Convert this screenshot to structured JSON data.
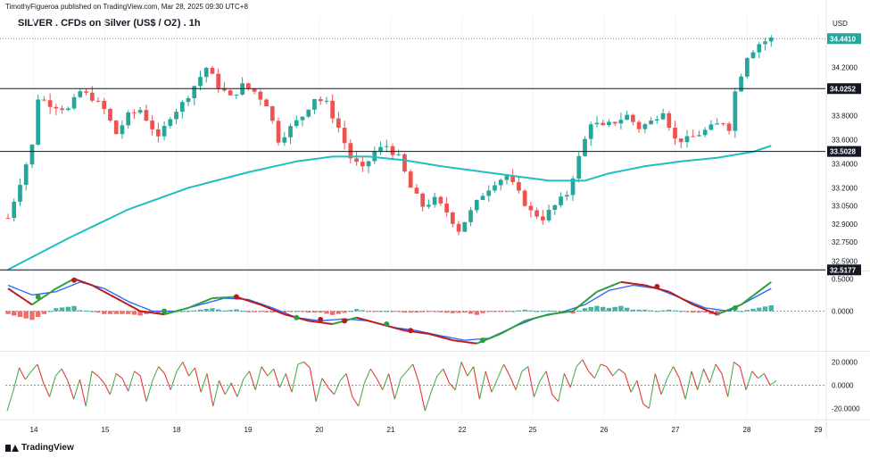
{
  "header": {
    "publisher": "TimothyFigueroa published on TradingView.com, Mar 28, 2025 09:30 UTC+8",
    "title": "SILVER . CFDs on Silver (US$ / OZ) . 1h",
    "currency": "USD"
  },
  "footer": {
    "brand": "TradingView"
  },
  "colors": {
    "up": "#26a69a",
    "down": "#ef5350",
    "ma": "#1fbfbf",
    "level_line": "#131722",
    "osc_fast": "#2e9e3c",
    "osc_fast_down": "#b71c1c",
    "osc_slow": "#2962ff",
    "hist_up": "#26a69a",
    "hist_down": "#ef5350",
    "pane3_up": "#4caf50",
    "pane3_down": "#e53935"
  },
  "chart_data": {
    "type": "candlestick",
    "x_tick_labels": [
      "14",
      "15",
      "18",
      "19",
      "20",
      "21",
      "22",
      "25",
      "26",
      "27",
      "28",
      "29"
    ],
    "price_axis": {
      "ticks": [
        "34.2000",
        "33.8000",
        "33.6000",
        "33.4000",
        "33.2000",
        "33.0500",
        "32.9000",
        "32.7500",
        "32.5900"
      ],
      "range": [
        32.52,
        34.48
      ]
    },
    "horizontal_levels": [
      {
        "label": "34.0252",
        "value": 34.0252
      },
      {
        "label": "33.5028",
        "value": 33.5028
      },
      {
        "label": "32.5177",
        "value": 32.5177
      }
    ],
    "last_price": {
      "label": "34.4410",
      "value": 34.441
    },
    "price_path": [
      [
        0,
        32.95
      ],
      [
        2,
        33.25
      ],
      [
        4,
        33.55
      ],
      [
        5,
        33.95
      ],
      [
        7,
        33.9
      ],
      [
        10,
        33.85
      ],
      [
        12,
        34.0
      ],
      [
        14,
        33.95
      ],
      [
        16,
        33.85
      ],
      [
        18,
        33.65
      ],
      [
        20,
        33.8
      ],
      [
        22,
        33.85
      ],
      [
        24,
        33.7
      ],
      [
        25,
        33.6
      ],
      [
        27,
        33.8
      ],
      [
        29,
        33.9
      ],
      [
        31,
        34.05
      ],
      [
        33,
        34.2
      ],
      [
        35,
        34.05
      ],
      [
        37,
        33.95
      ],
      [
        39,
        34.05
      ],
      [
        41,
        34.0
      ],
      [
        43,
        33.9
      ],
      [
        45,
        33.6
      ],
      [
        47,
        33.7
      ],
      [
        49,
        33.8
      ],
      [
        51,
        33.95
      ],
      [
        53,
        33.9
      ],
      [
        55,
        33.7
      ],
      [
        57,
        33.45
      ],
      [
        59,
        33.35
      ],
      [
        61,
        33.5
      ],
      [
        63,
        33.55
      ],
      [
        65,
        33.45
      ],
      [
        67,
        33.2
      ],
      [
        69,
        33.05
      ],
      [
        71,
        33.1
      ],
      [
        73,
        33.0
      ],
      [
        75,
        32.85
      ],
      [
        77,
        33.0
      ],
      [
        79,
        33.15
      ],
      [
        81,
        33.25
      ],
      [
        83,
        33.3
      ],
      [
        85,
        33.15
      ],
      [
        87,
        33.0
      ],
      [
        89,
        32.95
      ],
      [
        91,
        33.05
      ],
      [
        93,
        33.15
      ],
      [
        95,
        33.45
      ],
      [
        97,
        33.75
      ],
      [
        99,
        33.7
      ],
      [
        101,
        33.75
      ],
      [
        103,
        33.8
      ],
      [
        105,
        33.7
      ],
      [
        107,
        33.75
      ],
      [
        109,
        33.85
      ],
      [
        111,
        33.6
      ],
      [
        113,
        33.6
      ],
      [
        115,
        33.65
      ],
      [
        117,
        33.7
      ],
      [
        119,
        33.75
      ],
      [
        120,
        33.7
      ],
      [
        121,
        34.0
      ],
      [
        123,
        34.3
      ],
      [
        125,
        34.4
      ],
      [
        127,
        34.44
      ]
    ],
    "ma_value_path": [
      [
        0,
        32.52
      ],
      [
        10,
        32.78
      ],
      [
        20,
        33.02
      ],
      [
        30,
        33.2
      ],
      [
        40,
        33.33
      ],
      [
        48,
        33.42
      ],
      [
        54,
        33.46
      ],
      [
        60,
        33.46
      ],
      [
        66,
        33.43
      ],
      [
        72,
        33.38
      ],
      [
        78,
        33.34
      ],
      [
        84,
        33.3
      ],
      [
        90,
        33.26
      ],
      [
        96,
        33.26
      ],
      [
        100,
        33.32
      ],
      [
        106,
        33.38
      ],
      [
        112,
        33.42
      ],
      [
        118,
        33.45
      ],
      [
        124,
        33.5
      ],
      [
        127,
        33.55
      ]
    ],
    "oscillator_pane": {
      "ticks": [
        "0.5000",
        "0.0000"
      ],
      "range": [
        -0.6,
        0.6
      ],
      "fast_path": [
        [
          0,
          0.35
        ],
        [
          4,
          0.1
        ],
        [
          8,
          0.35
        ],
        [
          11,
          0.5
        ],
        [
          14,
          0.4
        ],
        [
          18,
          0.2
        ],
        [
          22,
          0.0
        ],
        [
          26,
          -0.05
        ],
        [
          30,
          0.05
        ],
        [
          34,
          0.2
        ],
        [
          38,
          0.22
        ],
        [
          42,
          0.1
        ],
        [
          46,
          -0.05
        ],
        [
          50,
          -0.15
        ],
        [
          54,
          -0.2
        ],
        [
          58,
          -0.1
        ],
        [
          62,
          -0.2
        ],
        [
          66,
          -0.3
        ],
        [
          70,
          -0.35
        ],
        [
          74,
          -0.45
        ],
        [
          78,
          -0.5
        ],
        [
          82,
          -0.35
        ],
        [
          86,
          -0.15
        ],
        [
          90,
          -0.05
        ],
        [
          94,
          0.0
        ],
        [
          98,
          0.3
        ],
        [
          102,
          0.45
        ],
        [
          106,
          0.4
        ],
        [
          110,
          0.3
        ],
        [
          114,
          0.1
        ],
        [
          118,
          -0.05
        ],
        [
          122,
          0.1
        ],
        [
          127,
          0.45
        ]
      ],
      "slow_path": [
        [
          0,
          0.4
        ],
        [
          4,
          0.25
        ],
        [
          8,
          0.3
        ],
        [
          12,
          0.45
        ],
        [
          16,
          0.35
        ],
        [
          20,
          0.15
        ],
        [
          24,
          0.0
        ],
        [
          28,
          0.0
        ],
        [
          32,
          0.1
        ],
        [
          36,
          0.2
        ],
        [
          40,
          0.18
        ],
        [
          44,
          0.05
        ],
        [
          48,
          -0.1
        ],
        [
          52,
          -0.15
        ],
        [
          56,
          -0.12
        ],
        [
          60,
          -0.15
        ],
        [
          64,
          -0.25
        ],
        [
          68,
          -0.3
        ],
        [
          72,
          -0.38
        ],
        [
          76,
          -0.45
        ],
        [
          80,
          -0.42
        ],
        [
          84,
          -0.25
        ],
        [
          88,
          -0.1
        ],
        [
          92,
          -0.02
        ],
        [
          96,
          0.1
        ],
        [
          100,
          0.32
        ],
        [
          104,
          0.4
        ],
        [
          108,
          0.35
        ],
        [
          112,
          0.2
        ],
        [
          116,
          0.05
        ],
        [
          120,
          0.0
        ],
        [
          124,
          0.2
        ],
        [
          127,
          0.35
        ]
      ],
      "cross_points": [
        {
          "i": 5,
          "v": 0.22,
          "kind": "up"
        },
        {
          "i": 11,
          "v": 0.48,
          "kind": "down"
        },
        {
          "i": 26,
          "v": 0.0,
          "kind": "up"
        },
        {
          "i": 38,
          "v": 0.22,
          "kind": "down"
        },
        {
          "i": 48,
          "v": -0.1,
          "kind": "up"
        },
        {
          "i": 52,
          "v": -0.13,
          "kind": "down"
        },
        {
          "i": 56,
          "v": -0.15,
          "kind": "down"
        },
        {
          "i": 63,
          "v": -0.2,
          "kind": "up"
        },
        {
          "i": 67,
          "v": -0.3,
          "kind": "down"
        },
        {
          "i": 79,
          "v": -0.45,
          "kind": "up"
        },
        {
          "i": 108,
          "v": 0.38,
          "kind": "down"
        },
        {
          "i": 121,
          "v": 0.05,
          "kind": "up"
        }
      ]
    },
    "third_pane": {
      "ticks": [
        "20.0000",
        "0.0000",
        "-20.0000"
      ],
      "range": [
        -28,
        28
      ],
      "series": [
        -22,
        -5,
        15,
        5,
        12,
        18,
        2,
        -10,
        8,
        14,
        4,
        -12,
        5,
        -18,
        12,
        8,
        2,
        -8,
        10,
        6,
        -5,
        12,
        8,
        -14,
        4,
        16,
        10,
        -4,
        12,
        20,
        8,
        15,
        -6,
        10,
        -18,
        4,
        -8,
        2,
        -10,
        5,
        12,
        -4,
        16,
        8,
        14,
        -2,
        10,
        -6,
        18,
        20,
        15,
        -14,
        6,
        -2,
        -8,
        4,
        10,
        -10,
        -18,
        2,
        14,
        6,
        -4,
        10,
        -12,
        6,
        12,
        18,
        2,
        -22,
        -6,
        8,
        14,
        2,
        -4,
        20,
        8,
        16,
        -12,
        12,
        -6,
        6,
        18,
        8,
        -4,
        12,
        16,
        -10,
        4,
        12,
        -8,
        -14,
        10,
        -2,
        16,
        22,
        12,
        6,
        18,
        16,
        8,
        14,
        10,
        -6,
        4,
        -16,
        -20,
        10,
        -8,
        6,
        16,
        6,
        -12,
        12,
        -4,
        14,
        2,
        18,
        10,
        -10,
        20,
        16,
        -4,
        12,
        6,
        10,
        0,
        4
      ]
    }
  }
}
